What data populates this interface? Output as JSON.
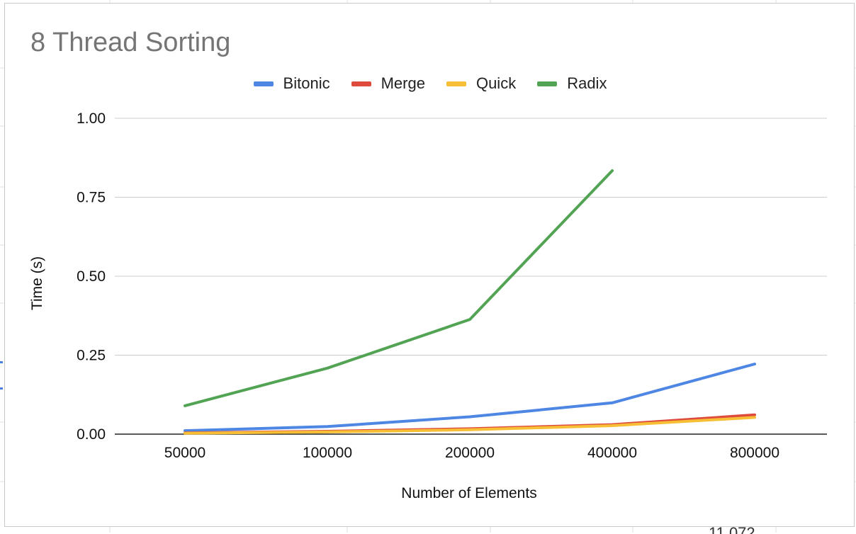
{
  "chart_data": {
    "type": "line",
    "title": "8 Thread Sorting",
    "xlabel": "Number of Elements",
    "ylabel": "Time (s)",
    "categories": [
      "50000",
      "100000",
      "200000",
      "400000",
      "800000"
    ],
    "yticks": [
      "0.00",
      "0.25",
      "0.50",
      "0.75",
      "1.00"
    ],
    "ylim": [
      0,
      1
    ],
    "grid": true,
    "legend_position": "top",
    "series": [
      {
        "name": "Bitonic",
        "color": "#4e86e4",
        "values": [
          0.011,
          0.024,
          0.055,
          0.099,
          0.222
        ]
      },
      {
        "name": "Merge",
        "color": "#de4b3d",
        "values": [
          0.004,
          0.009,
          0.017,
          0.03,
          0.061
        ]
      },
      {
        "name": "Quick",
        "color": "#f6bf35",
        "values": [
          0.003,
          0.007,
          0.014,
          0.027,
          0.053
        ]
      },
      {
        "name": "Radix",
        "color": "#52a454",
        "values": [
          0.09,
          0.209,
          0.363,
          0.834,
          null
        ]
      }
    ]
  },
  "page": {
    "corner_text": "11.072"
  }
}
